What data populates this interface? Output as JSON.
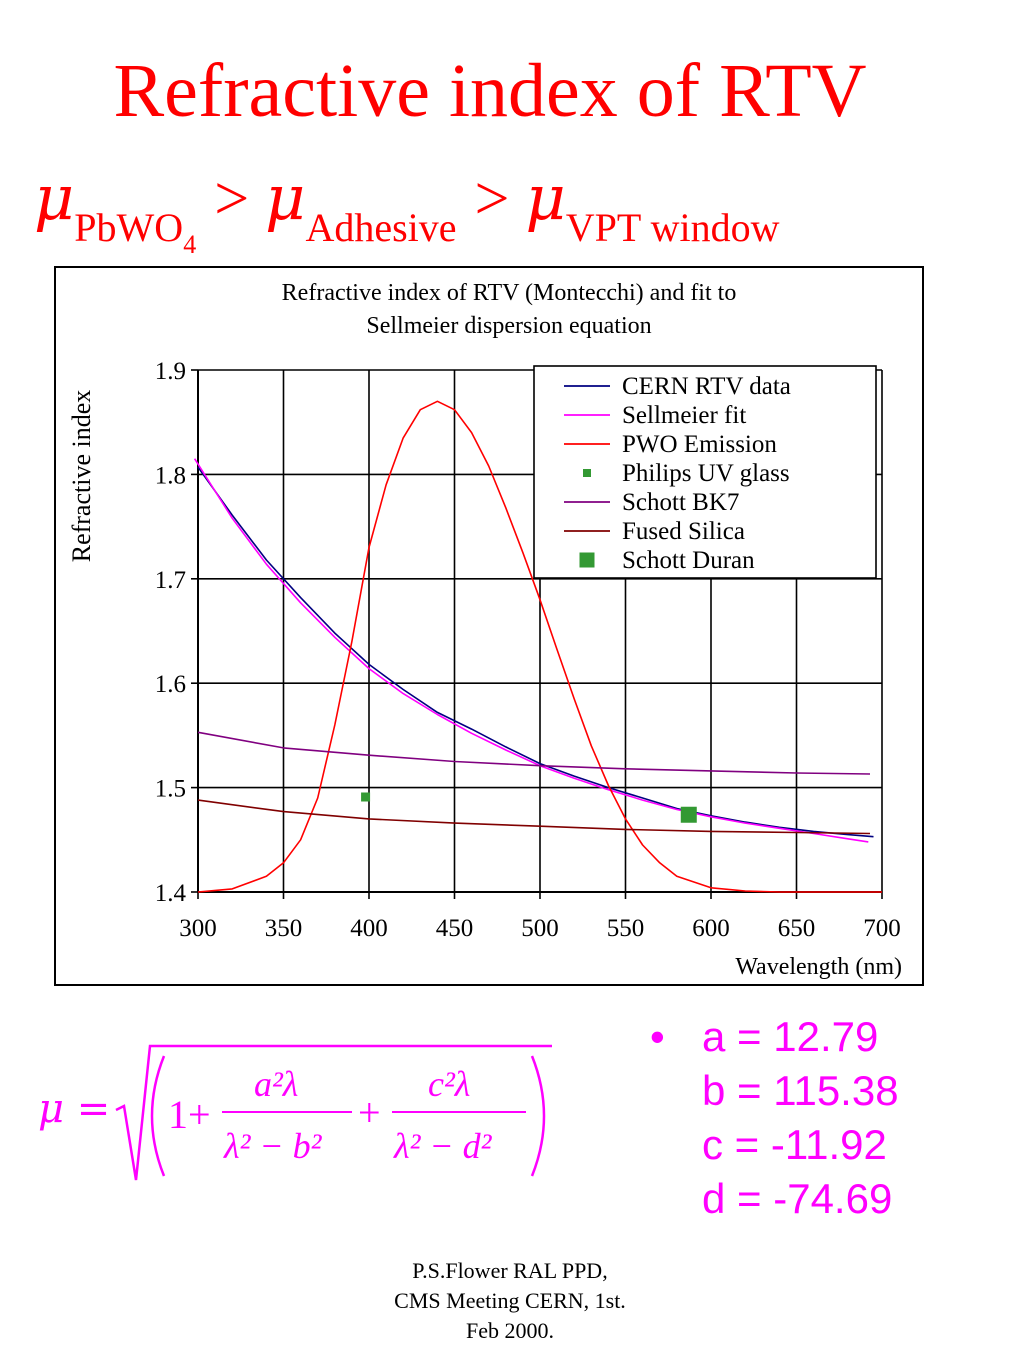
{
  "slide": {
    "title": "Refractive index of RTV",
    "relation": {
      "mu_symbol": "μ",
      "gt": ">",
      "sub1_text": "PbWO",
      "sub1_index": "4",
      "sub2": "Adhesive",
      "sub3": "VPT window"
    },
    "formula": {
      "lhs": "μ =",
      "one_plus": "1+",
      "num1": "a²λ",
      "den1": "λ² − b²",
      "plus": "+",
      "num2": "c²λ",
      "den2": "λ² − d²"
    },
    "bullet_glyph": "•",
    "params": [
      "a = 12.79",
      "b = 115.38",
      "c = -11.92",
      "d = -74.69"
    ],
    "credits": [
      "P.S.Flower RAL PPD,",
      "CMS Meeting CERN, 1st.",
      "Feb 2000."
    ]
  },
  "chart_data": {
    "type": "line",
    "title": [
      "Refractive index of RTV (Montecchi) and fit to",
      "Sellmeier dispersion equation"
    ],
    "xlabel": "Wavelength (nm)",
    "ylabel": "Refractive index",
    "xlim": [
      300,
      700
    ],
    "ylim": [
      1.4,
      1.9
    ],
    "xticks": [
      300,
      350,
      400,
      450,
      500,
      550,
      600,
      650,
      700
    ],
    "yticks": [
      1.4,
      1.5,
      1.6,
      1.7,
      1.8,
      1.9
    ],
    "ytick_labels": [
      "1.4",
      "1.5",
      "1.6",
      "1.7",
      "1.8",
      "1.9"
    ],
    "grid": true,
    "legend": "top-right",
    "series": [
      {
        "name": "CERN RTV data",
        "kind": "line",
        "color": "#000080",
        "x": [
          300,
          320,
          340,
          360,
          380,
          400,
          420,
          440,
          460,
          480,
          500,
          520,
          540,
          560,
          580,
          600,
          620,
          640,
          660,
          680,
          695
        ],
        "y": [
          1.807,
          1.761,
          1.718,
          1.682,
          1.648,
          1.618,
          1.594,
          1.572,
          1.556,
          1.539,
          1.523,
          1.511,
          1.5,
          1.49,
          1.48,
          1.473,
          1.467,
          1.462,
          1.458,
          1.455,
          1.453
        ]
      },
      {
        "name": "Sellmeier fit",
        "kind": "line",
        "color": "#ff00ff",
        "x": [
          298,
          320,
          340,
          360,
          380,
          400,
          420,
          440,
          460,
          480,
          500,
          520,
          540,
          560,
          580,
          600,
          620,
          640,
          660,
          680,
          692
        ],
        "y": [
          1.815,
          1.758,
          1.714,
          1.677,
          1.644,
          1.614,
          1.59,
          1.57,
          1.552,
          1.536,
          1.521,
          1.509,
          1.498,
          1.488,
          1.479,
          1.472,
          1.466,
          1.461,
          1.456,
          1.451,
          1.448
        ]
      },
      {
        "name": "PWO Emission",
        "kind": "line",
        "color": "#ff0000",
        "x": [
          300,
          320,
          340,
          350,
          360,
          370,
          380,
          390,
          400,
          410,
          420,
          430,
          440,
          450,
          460,
          470,
          480,
          490,
          500,
          510,
          520,
          530,
          540,
          550,
          560,
          570,
          580,
          600,
          620,
          640,
          660,
          680,
          700
        ],
        "y": [
          1.4,
          1.403,
          1.415,
          1.428,
          1.45,
          1.49,
          1.56,
          1.64,
          1.73,
          1.79,
          1.835,
          1.862,
          1.87,
          1.862,
          1.84,
          1.808,
          1.768,
          1.725,
          1.68,
          1.632,
          1.585,
          1.54,
          1.502,
          1.47,
          1.445,
          1.428,
          1.415,
          1.404,
          1.401,
          1.4,
          1.4,
          1.4,
          1.4
        ]
      },
      {
        "name": "Philips UV glass",
        "kind": "point",
        "color": "#339933",
        "size": "small",
        "x": [
          398
        ],
        "y": [
          1.491
        ]
      },
      {
        "name": "Schott BK7",
        "kind": "line",
        "color": "#800080",
        "x": [
          300,
          350,
          400,
          450,
          500,
          550,
          600,
          650,
          693
        ],
        "y": [
          1.553,
          1.538,
          1.531,
          1.525,
          1.521,
          1.518,
          1.516,
          1.514,
          1.513
        ]
      },
      {
        "name": "Fused Silica",
        "kind": "line",
        "color": "#800000",
        "x": [
          300,
          350,
          400,
          450,
          500,
          550,
          600,
          650,
          693
        ],
        "y": [
          1.488,
          1.477,
          1.47,
          1.466,
          1.463,
          1.46,
          1.458,
          1.457,
          1.456
        ]
      },
      {
        "name": "Schott Duran",
        "kind": "point",
        "color": "#339933",
        "size": "large",
        "x": [
          587
        ],
        "y": [
          1.474
        ]
      }
    ]
  }
}
